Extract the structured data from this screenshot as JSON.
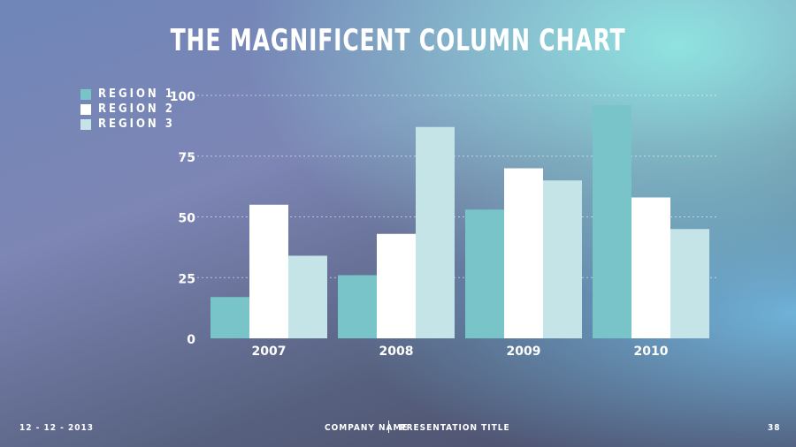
{
  "chart_data": {
    "type": "bar",
    "title": "THE MAGNIFICENT COLUMN CHART",
    "categories": [
      "2007",
      "2008",
      "2009",
      "2010"
    ],
    "series": [
      {
        "name": "REGION 1",
        "color": "#78c4c9",
        "values": [
          17,
          26,
          53,
          96
        ]
      },
      {
        "name": "REGION 2",
        "color": "#ffffff",
        "values": [
          55,
          43,
          70,
          58
        ]
      },
      {
        "name": "REGION 3",
        "color": "#c4e4e7",
        "values": [
          34,
          87,
          65,
          45
        ]
      }
    ],
    "ylim": [
      0,
      100
    ],
    "yticks": [
      "0",
      "25",
      "50",
      "75",
      "100"
    ],
    "grid": true,
    "legend": "top-left"
  },
  "footer": {
    "date": "12 - 12 - 2013",
    "company": "COMPANY NAME",
    "presentation": "PRESENTATION TITLE",
    "page": "38"
  }
}
